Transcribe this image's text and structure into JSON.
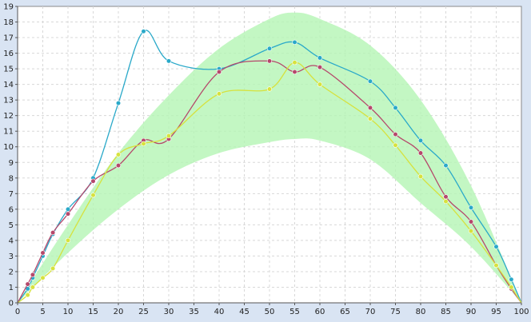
{
  "chart_data": {
    "type": "line",
    "title": "",
    "xlabel": "",
    "ylabel": "",
    "xlim": [
      0,
      100
    ],
    "ylim": [
      0,
      19
    ],
    "x_ticks": [
      0,
      5,
      10,
      15,
      20,
      25,
      30,
      35,
      40,
      45,
      50,
      55,
      60,
      65,
      70,
      75,
      80,
      85,
      90,
      95,
      100
    ],
    "y_ticks": [
      0,
      1,
      2,
      3,
      4,
      5,
      6,
      7,
      8,
      9,
      10,
      11,
      12,
      13,
      14,
      15,
      16,
      17,
      18,
      19
    ],
    "grid": true,
    "legend": "none",
    "band": {
      "color": "#b4f5b4",
      "x": [
        0,
        10,
        20,
        30,
        40,
        50,
        55,
        60,
        70,
        80,
        90,
        100
      ],
      "upper": [
        0,
        5.0,
        9.6,
        13.3,
        16.3,
        18.2,
        18.6,
        18.2,
        16.5,
        13.0,
        7.5,
        0
      ],
      "lower": [
        0,
        3.2,
        6.0,
        8.2,
        9.6,
        10.3,
        10.5,
        10.4,
        9.2,
        6.4,
        3.6,
        0
      ]
    },
    "series": [
      {
        "color": "#2aa9c9",
        "points": [
          [
            0,
            0
          ],
          [
            2,
            0.9
          ],
          [
            3,
            1.6
          ],
          [
            5,
            3.0
          ],
          [
            7,
            4.4
          ],
          [
            10,
            6.0
          ],
          [
            15,
            8.0
          ],
          [
            20,
            12.8
          ],
          [
            25,
            17.4
          ],
          [
            30,
            15.5
          ],
          [
            40,
            15.0
          ],
          [
            50,
            16.3
          ],
          [
            55,
            16.7
          ],
          [
            60,
            15.7
          ],
          [
            70,
            14.2
          ],
          [
            75,
            12.5
          ],
          [
            80,
            10.4
          ],
          [
            85,
            8.8
          ],
          [
            90,
            6.1
          ],
          [
            95,
            3.6
          ],
          [
            98,
            1.5
          ],
          [
            100,
            0
          ]
        ]
      },
      {
        "color": "#b5486b",
        "points": [
          [
            0,
            0
          ],
          [
            2,
            1.2
          ],
          [
            3,
            1.8
          ],
          [
            5,
            3.2
          ],
          [
            7,
            4.5
          ],
          [
            10,
            5.7
          ],
          [
            15,
            7.8
          ],
          [
            20,
            8.8
          ],
          [
            25,
            10.4
          ],
          [
            30,
            10.5
          ],
          [
            40,
            14.8
          ],
          [
            50,
            15.5
          ],
          [
            55,
            14.8
          ],
          [
            60,
            15.1
          ],
          [
            70,
            12.5
          ],
          [
            75,
            10.8
          ],
          [
            80,
            9.6
          ],
          [
            85,
            6.8
          ],
          [
            90,
            5.2
          ],
          [
            95,
            2.4
          ],
          [
            98,
            0.9
          ],
          [
            100,
            0
          ]
        ]
      },
      {
        "color": "#d6e23e",
        "points": [
          [
            0,
            0
          ],
          [
            2,
            0.5
          ],
          [
            3,
            1.0
          ],
          [
            5,
            1.6
          ],
          [
            7,
            2.2
          ],
          [
            10,
            4.0
          ],
          [
            15,
            6.9
          ],
          [
            20,
            9.5
          ],
          [
            25,
            10.2
          ],
          [
            30,
            10.7
          ],
          [
            40,
            13.4
          ],
          [
            50,
            13.7
          ],
          [
            55,
            15.4
          ],
          [
            60,
            14.0
          ],
          [
            70,
            11.8
          ],
          [
            75,
            10.1
          ],
          [
            80,
            8.1
          ],
          [
            85,
            6.5
          ],
          [
            90,
            4.6
          ],
          [
            95,
            2.4
          ],
          [
            98,
            1.0
          ],
          [
            100,
            0
          ]
        ]
      }
    ]
  }
}
